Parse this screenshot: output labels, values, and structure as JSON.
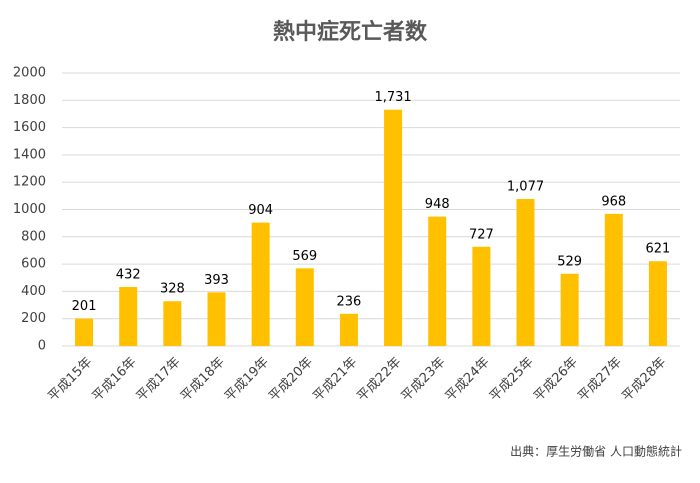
{
  "chart_data": {
    "type": "bar",
    "title": "熱中症死亡者数",
    "categories": [
      "平成15年",
      "平成16年",
      "平成17年",
      "平成18年",
      "平成19年",
      "平成20年",
      "平成21年",
      "平成22年",
      "平成23年",
      "平成24年",
      "平成25年",
      "平成26年",
      "平成27年",
      "平成28年"
    ],
    "values": [
      201,
      432,
      328,
      393,
      904,
      569,
      236,
      1731,
      948,
      727,
      1077,
      529,
      968,
      621
    ],
    "value_labels": [
      "201",
      "432",
      "328",
      "393",
      "904",
      "569",
      "236",
      "1,731",
      "948",
      "727",
      "1,077",
      "529",
      "968",
      "621"
    ],
    "color": "#ffc000",
    "ylim": [
      0,
      2000
    ],
    "yticks": [
      0,
      200,
      400,
      600,
      800,
      1000,
      1200,
      1400,
      1600,
      1800,
      2000
    ],
    "grid": true,
    "source": "出典：厚生労働省 人口動態統計"
  }
}
